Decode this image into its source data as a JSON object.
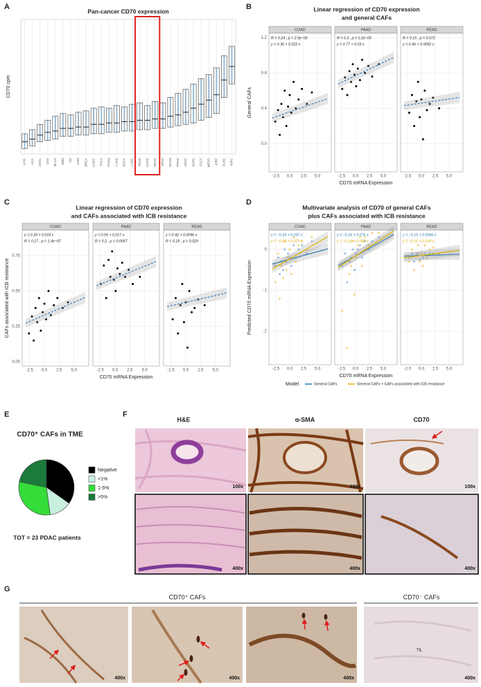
{
  "panel_labels": [
    "A",
    "B",
    "C",
    "D",
    "E",
    "F",
    "G"
  ],
  "chart_data": [
    {
      "type": "box",
      "title": "Pan-cancer CD70 expression",
      "y_label": "CD70 cpm",
      "categories": [
        "LIHC",
        "ACC",
        "CHOL",
        "LGG",
        "BLCA",
        "GBM",
        "OV",
        "UVM",
        "BRCA",
        "UCEC",
        "THCA",
        "THYM",
        "LUAD",
        "ESCA",
        "LUSC",
        "PAAD",
        "COAD",
        "READ",
        "STAD",
        "SKCM",
        "PRAD",
        "CESC",
        "SARC",
        "TGCT",
        "MESO",
        "KIRP",
        "DLBC",
        "KIRC"
      ],
      "q1": [
        0.4,
        0.6,
        0.9,
        1.0,
        1.1,
        1.3,
        1.3,
        1.4,
        1.4,
        1.5,
        1.5,
        1.6,
        1.6,
        1.7,
        1.7,
        1.8,
        1.8,
        1.9,
        1.9,
        2.0,
        2.1,
        2.2,
        2.3,
        2.5,
        2.7,
        3.0,
        4.2,
        5.2
      ],
      "medians": [
        0.9,
        1.1,
        1.4,
        1.6,
        1.7,
        1.9,
        1.9,
        2.0,
        2.0,
        2.2,
        2.2,
        2.3,
        2.3,
        2.4,
        2.4,
        2.5,
        2.5,
        2.6,
        2.6,
        2.8,
        2.9,
        3.1,
        3.4,
        3.7,
        4.0,
        4.4,
        5.5,
        6.5
      ],
      "q3": [
        1.5,
        1.8,
        2.2,
        2.5,
        2.8,
        3.0,
        2.9,
        3.1,
        3.2,
        3.4,
        3.5,
        3.4,
        3.6,
        3.5,
        3.7,
        3.8,
        3.6,
        3.9,
        3.8,
        4.2,
        4.5,
        4.8,
        5.2,
        5.6,
        5.9,
        6.4,
        7.3,
        8.0
      ],
      "ylim": [
        0,
        10
      ],
      "color": "#3f7fb3",
      "highlight": [
        15,
        17
      ]
    },
    {
      "type": "facet-scatter",
      "title": [
        "Linear regression of CD70 expression",
        "and general CAFs"
      ],
      "x_label": "CD70 mRNA Expression",
      "y_label": "General CAFs",
      "xlim": [
        -3.75,
        7.5
      ],
      "ylim": [
        -0.32,
        1.25
      ],
      "xticks": [
        -2.5,
        {
          "value": 0,
          "label": "0.0"
        },
        2.5,
        {
          "value": 5,
          "label": "5.0"
        }
      ],
      "yticks": [
        {
          "value": 0,
          "label": "0.0"
        },
        0.4,
        0.8,
        1.2
      ],
      "point_colors": [
        "#000000"
      ],
      "line_colors": [
        "#3a7fc1"
      ],
      "dashed": true,
      "facets": [
        {
          "name": "COAD",
          "annotations": [
            "R = 0.24 , p = 2.5e−06",
            "y = 0.36 + 0.022 x"
          ],
          "x": [
            -2.6,
            -2.1,
            -1.8,
            -1.5,
            -1.2,
            -0.9,
            -0.6,
            -0.3,
            0,
            0.3,
            0.7,
            1.1,
            1.6,
            2.2,
            3.1,
            4.0
          ],
          "series": [
            {
              "values": [
                0.25,
                0.38,
                0.1,
                0.45,
                0.3,
                0.6,
                0.2,
                0.42,
                0.55,
                0.35,
                0.7,
                0.4,
                0.5,
                0.62,
                0.45,
                0.58
              ],
              "intercept": 0.36,
              "slope": 0.022
            }
          ]
        },
        {
          "name": "PAAD",
          "annotations": [
            "R = 0.3 , p = 5.2e−05",
            "y = 0.77 + 0.03 x"
          ],
          "x": [
            -2.4,
            -1.9,
            -1.5,
            -1.1,
            -0.8,
            -0.5,
            -0.2,
            0.1,
            0.4,
            0.8,
            1.2,
            1.7,
            2.3,
            3.0,
            4.2
          ],
          "series": [
            {
              "values": [
                0.62,
                0.75,
                0.55,
                0.82,
                0.7,
                0.9,
                0.78,
                0.65,
                0.85,
                0.72,
                0.95,
                0.8,
                0.88,
                0.76,
                0.9
              ],
              "intercept": 0.77,
              "slope": 0.03
            }
          ]
        },
        {
          "name": "READ",
          "annotations": [
            "R = 0.15 , p = 0.072",
            "y = 0.46 + 0.0092 x"
          ],
          "x": [
            -2.2,
            -1.7,
            -1.3,
            -0.9,
            -0.6,
            -0.3,
            0,
            0.3,
            0.6,
            1.0,
            1.5,
            2.1,
            3.2
          ],
          "series": [
            {
              "values": [
                0.35,
                0.55,
                0.2,
                0.48,
                0.7,
                0.3,
                0.5,
                0.05,
                0.6,
                0.38,
                0.45,
                0.52,
                0.4
              ],
              "intercept": 0.46,
              "slope": 0.0092
            }
          ]
        }
      ]
    },
    {
      "type": "facet-scatter",
      "title": [
        "Linear regression of CD70 expression",
        "and CAFs associated with ICB resistance"
      ],
      "x_label": "CD70 mRNA Expression",
      "y_label": "CAFs associated with ICB resistance",
      "xlim": [
        -3.75,
        7.5
      ],
      "ylim": [
        -0.03,
        0.93
      ],
      "xticks": [
        -2.5,
        {
          "value": 0,
          "label": "0.0"
        },
        2.5,
        {
          "value": 5,
          "label": "5.0"
        }
      ],
      "yticks": [
        {
          "value": 0,
          "label": "0.00"
        },
        0.25,
        {
          "value": 0.5,
          "label": "0.50"
        },
        0.75
      ],
      "point_colors": [
        "#000000"
      ],
      "line_colors": [
        "#3a7fc1"
      ],
      "dashed": true,
      "facets": [
        {
          "name": "COAD",
          "annotations": [
            "y = 0.33 + 0.018 x",
            "R = 0.27 , p = 1.4e−07"
          ],
          "x": [
            -2.6,
            -2.1,
            -1.8,
            -1.5,
            -1.2,
            -0.9,
            -0.6,
            -0.3,
            0,
            0.3,
            0.7,
            1.1,
            1.6,
            2.2,
            3.1,
            4.0
          ],
          "series": [
            {
              "values": [
                0.2,
                0.32,
                0.15,
                0.38,
                0.28,
                0.45,
                0.22,
                0.35,
                0.41,
                0.3,
                0.5,
                0.33,
                0.4,
                0.45,
                0.38,
                0.42
              ],
              "intercept": 0.33,
              "slope": 0.018
            }
          ]
        },
        {
          "name": "PAAD",
          "annotations": [
            "y = 0.59 + 0.017 x",
            "R = 0.2 , p = 0.0067"
          ],
          "x": [
            -2.4,
            -1.9,
            -1.5,
            -1.1,
            -0.8,
            -0.5,
            -0.2,
            0.1,
            0.4,
            0.8,
            1.2,
            1.7,
            2.3,
            3.0,
            4.2
          ],
          "series": [
            {
              "values": [
                0.55,
                0.68,
                0.45,
                0.72,
                0.6,
                0.78,
                0.58,
                0.5,
                0.66,
                0.62,
                0.7,
                0.6,
                0.65,
                0.55,
                0.6
              ],
              "intercept": 0.59,
              "slope": 0.017
            }
          ]
        },
        {
          "name": "READ",
          "annotations": [
            "y = 0.42 + 0.0096 x",
            "R = 0.18 , p = 0.029"
          ],
          "x": [
            -2.2,
            -1.7,
            -1.3,
            -0.9,
            -0.6,
            -0.3,
            0,
            0.3,
            0.6,
            1.0,
            1.5,
            2.1,
            3.2
          ],
          "series": [
            {
              "values": [
                0.3,
                0.45,
                0.2,
                0.4,
                0.55,
                0.28,
                0.42,
                0.1,
                0.5,
                0.35,
                0.38,
                0.44,
                0.4
              ],
              "intercept": 0.42,
              "slope": 0.0096
            }
          ]
        }
      ]
    },
    {
      "type": "facet-scatter",
      "title": [
        "Multivariate analysis of CD70 of general CAFs",
        "plus CAFs associated with ICB resistance"
      ],
      "x_label": "CD70 mRNA Expression",
      "y_label": "Predicted CD70 mRNA Expression",
      "xlim": [
        -3.75,
        7.5
      ],
      "ylim": [
        -2.81,
        0.47
      ],
      "xticks": [
        -2.5,
        {
          "value": 0,
          "label": "0.0"
        },
        2.5,
        {
          "value": 5,
          "label": "5.0"
        }
      ],
      "yticks": [
        -2,
        -1,
        0
      ],
      "point_colors": [
        "#6f9fd8",
        "#f2c53d"
      ],
      "line_colors": [
        "#1f78b4",
        "#e0b400"
      ],
      "dashed": false,
      "annotation_colors": [
        "#1f78b4",
        "#d9ad00"
      ],
      "legend": {
        "title": "Model",
        "names": [
          "General CAFs",
          "General CAFs + CAFs associated with ICB resistance"
        ]
      },
      "facets": [
        {
          "name": "COAD",
          "annotations": [
            "y = −0.24 + 0.037 x",
            "y = −0.23 + 0.079 x"
          ],
          "x": [
            -2.6,
            -2.1,
            -1.8,
            -1.5,
            -1.2,
            -0.9,
            -0.6,
            -0.3,
            0,
            0.3,
            0.7,
            1.1,
            1.6,
            2.2,
            3.1,
            4.0
          ],
          "series": [
            {
              "values": [
                -0.4,
                -0.2,
                -0.6,
                -0.3,
                -0.5,
                0,
                -0.3,
                -0.1,
                -0.2,
                -0.4,
                0.1,
                -0.2,
                0,
                0.1,
                -0.1,
                0.2
              ],
              "intercept": -0.24,
              "slope": 0.037
            },
            {
              "values": [
                -0.8,
                -0.1,
                -1.2,
                -0.4,
                -0.7,
                0.2,
                -0.5,
                -0.2,
                0,
                -0.6,
                0.3,
                -0.3,
                0.1,
                0.2,
                0,
                0.3
              ],
              "intercept": -0.23,
              "slope": 0.079
            }
          ]
        },
        {
          "name": "PAAD",
          "annotations": [
            "y = −0.16 + 0.076 x",
            "y = −0.16 + 0.088 x"
          ],
          "x": [
            -2.4,
            -1.9,
            -1.5,
            -1.1,
            -0.8,
            -0.5,
            -0.2,
            0.1,
            0.4,
            0.8,
            1.2,
            1.7,
            2.3,
            3.0,
            4.2
          ],
          "series": [
            {
              "values": [
                -0.4,
                -0.1,
                -0.8,
                -0.3,
                -0.2,
                0,
                -0.5,
                -0.1,
                0,
                0.1,
                -0.2,
                0.2,
                0,
                0.2,
                0.3
              ],
              "intercept": -0.16,
              "slope": 0.076
            },
            {
              "values": [
                -1.5,
                -0.3,
                -2.4,
                -0.6,
                -0.4,
                0.2,
                -1.1,
                -0.2,
                0.1,
                0.3,
                -0.4,
                0.3,
                0.1,
                0.4,
                0.4
              ],
              "intercept": -0.16,
              "slope": 0.088
            }
          ]
        },
        {
          "name": "READ",
          "annotations": [
            "y = −0.15 + 0.0046 x",
            "y = −0.15 + 0.019 x"
          ],
          "x": [
            -2.2,
            -1.7,
            -1.3,
            -0.9,
            -0.6,
            -0.3,
            0,
            0.3,
            0.6,
            1.0,
            1.5,
            2.1,
            3.2
          ],
          "series": [
            {
              "values": [
                -0.2,
                -0.1,
                -0.3,
                -0.15,
                -0.1,
                -0.25,
                -0.1,
                -0.2,
                -0.1,
                -0.15,
                -0.1,
                -0.1,
                -0.12
              ],
              "intercept": -0.15,
              "slope": 0.0046
            },
            {
              "values": [
                -0.3,
                0,
                -0.5,
                -0.1,
                0.1,
                -0.3,
                -0.1,
                -0.4,
                0.1,
                -0.2,
                0,
                0.05,
                -0.1
              ],
              "intercept": -0.15,
              "slope": 0.019
            }
          ]
        }
      ]
    },
    {
      "type": "pie",
      "title": "CD70⁺ CAFs in TME",
      "categories": [
        "Negative",
        "<1%",
        "1-5%",
        ">5%"
      ],
      "values": [
        8,
        3,
        7,
        5
      ],
      "colors": [
        "#000000",
        "#c9efdf",
        "#35dc3a",
        "#1b7a3c"
      ],
      "note": "TOT = 23 PDAC patients"
    }
  ],
  "figure_f": {
    "columns": [
      "H&E",
      "α-SMA",
      "CD70"
    ],
    "magnifications": [
      "100x",
      "400x"
    ]
  },
  "figure_g": {
    "groups": [
      "CD70⁺ CAFs",
      "CD70⁻ CAFs"
    ],
    "magnification": "400x",
    "cell_label": "TIL"
  }
}
